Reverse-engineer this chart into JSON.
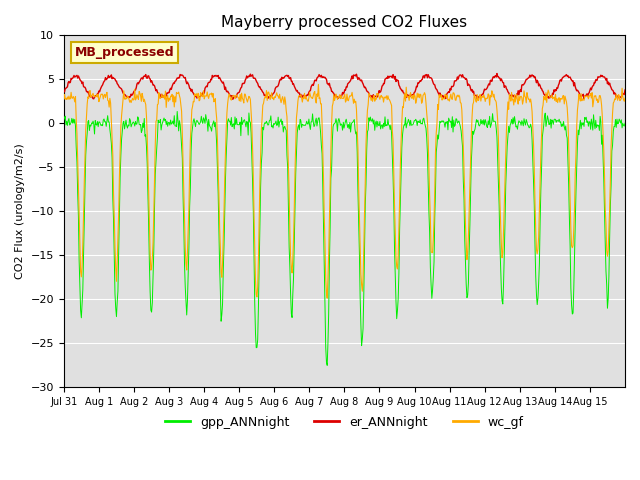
{
  "title": "Mayberry processed CO2 Fluxes",
  "ylabel": "CO2 Flux (urology/m2/s)",
  "ylim": [
    -30,
    10
  ],
  "yticks": [
    10,
    5,
    0,
    -5,
    -10,
    -15,
    -20,
    -25,
    -30
  ],
  "line_colors": {
    "gpp": "#00ee00",
    "er": "#dd0000",
    "wc": "#ffaa00"
  },
  "legend_label": "MB_processed",
  "legend_text_color": "#8b0000",
  "legend_bg_color": "#ffffcc",
  "legend_edge_color": "#ccaa00",
  "subplot_bg": "#e0e0e0",
  "fig_bg": "#ffffff",
  "num_days": 16,
  "ppd": 48,
  "grid_color": "#ffffff",
  "line_labels": [
    "gpp_ANNnight",
    "er_ANNnight",
    "wc_gf"
  ],
  "xtick_labels": [
    "Jul 31",
    "Aug 1",
    "Aug 2",
    "Aug 3",
    "Aug 4",
    "Aug 5",
    "Aug 6",
    "Aug 7",
    "Aug 8",
    "Aug 9",
    "Aug 10",
    "Aug 11",
    "Aug 12",
    "Aug 13",
    "Aug 14",
    "Aug 15"
  ],
  "gpp_amps": [
    22,
    22,
    22,
    21,
    22,
    27,
    22,
    28,
    25,
    22,
    20,
    20,
    21,
    21,
    22,
    20
  ],
  "wc_amps": [
    17,
    17,
    17,
    16,
    17,
    20,
    17,
    20,
    19,
    17,
    15,
    15,
    15,
    15,
    15,
    15
  ]
}
